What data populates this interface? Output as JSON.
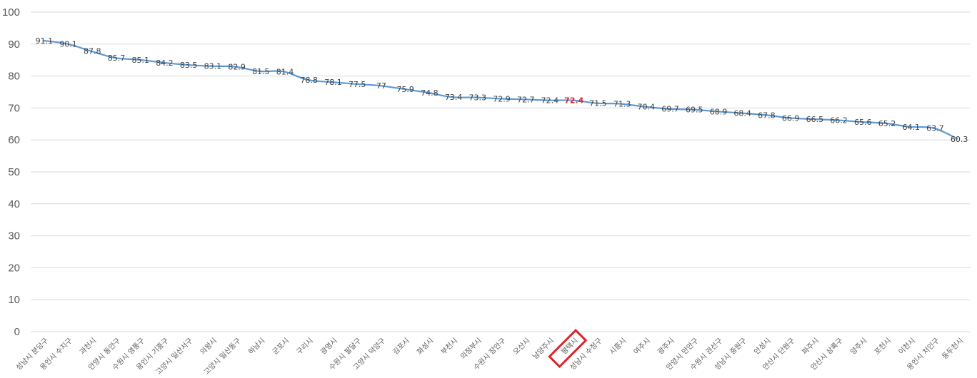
{
  "chart_data": {
    "type": "line",
    "title": "",
    "xlabel": "",
    "ylabel": "",
    "ylim": [
      0,
      100
    ],
    "yticks": [
      0,
      10,
      20,
      30,
      40,
      50,
      60,
      70,
      80,
      90,
      100
    ],
    "grid": true,
    "legend": "none",
    "line_color": "#5b9bd5",
    "highlight_color": "#d9262b",
    "highlight_category": "평택시",
    "categories": [
      "성남시 분당구",
      "용인시 수지구",
      "과천시",
      "안양시 동안구",
      "수원시 영통구",
      "용인시 기흥구",
      "고양시 일산서구",
      "의왕시",
      "고양시 일산동구",
      "하남시",
      "군포시",
      "구리시",
      "광명시",
      "수원시 팔달구",
      "고양시 덕양구",
      "김포시",
      "화성시",
      "부천시",
      "의정부시",
      "수원시 장안구",
      "오산시",
      "남양주시",
      "평택시",
      "성남시 수정구",
      "시흥시",
      "여주시",
      "광주시",
      "안양시 만안구",
      "수원시 권선구",
      "성남시 중원구",
      "안성시",
      "안산시 단원구",
      "파주시",
      "안산시 상록구",
      "양주시",
      "포천시",
      "이천시",
      "용인시 처인구",
      "동두천시"
    ],
    "series": [
      {
        "values": [
          91.1,
          90.1,
          87.8,
          85.7,
          85.1,
          84.2,
          83.5,
          83.1,
          82.9,
          81.5,
          81.4,
          78.8,
          78.1,
          77.5,
          77,
          75.9,
          74.8,
          73.4,
          73.3,
          72.9,
          72.7,
          72.4,
          72.4,
          71.5,
          71.3,
          70.4,
          69.7,
          69.5,
          68.9,
          68.4,
          67.8,
          66.9,
          66.5,
          66.2,
          65.6,
          65.2,
          64.1,
          63.7,
          60.3
        ]
      }
    ]
  }
}
